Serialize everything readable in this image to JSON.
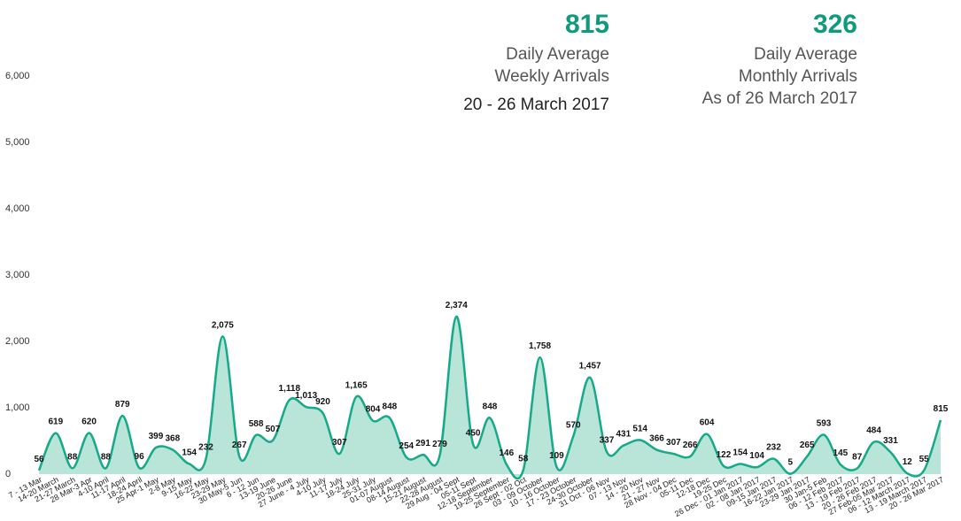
{
  "header": {
    "weekly": {
      "value": "815",
      "lines": [
        "Daily Average",
        "Weekly Arrivals"
      ],
      "period": "20 - 26 March 2017"
    },
    "monthly": {
      "value": "326",
      "lines": [
        "Daily Average",
        "Monthly Arrivals"
      ],
      "period": "As of 26 March 2017"
    }
  },
  "chart_data": {
    "type": "line",
    "color": "#16a98a",
    "area_color": "#7fcdb8",
    "categories": [
      "7 - 13 Mar",
      "14-20 March",
      "21-27 March",
      "28 Mar-3 Apr",
      "4-10 April",
      "11-17 April",
      "18-24 April",
      "25 Apr-1 May",
      "2-8 May",
      "9-15 May",
      "16-22 May",
      "23-29 May",
      "30 May-5 Jun",
      "6 - 12 Jun",
      "13-19 June",
      "20-26 June",
      "27 June - 4 July",
      "4-10 July",
      "11-17 July",
      "18-24 July",
      "25-31 July",
      "01-07 August",
      "08-14 August",
      "15-21 August",
      "22-28 August",
      "29 Aug - 04 Sept",
      "05-11 Sept",
      "12-18 September",
      "19-25 September",
      "26 Sept - 02 Oct",
      "03 - 09 October",
      "10 - 16 October",
      "17 - 23 October",
      "24-30 October",
      "31 Oct - 06 Nov",
      "07 - 13 Nov",
      "14 - 20 Nov",
      "21 - 27 Nov",
      "28 Nov - 04 Dec",
      "05-11 Dec",
      "12-18 Dec",
      "19-25 Dec",
      "26 Dec - 01 Jan 2017",
      "02 - 08 Jan 2017",
      "09-15 Jan 2017",
      "16-22 Jan 2017",
      "23-29 Jan 2017",
      "30 Jan-5 Feb",
      "06 - 12 Feb 2017",
      "13 - 19 Feb 2017",
      "20 - 26 Feb 2017",
      "27 Feb-05 Mar 2017",
      "06 - 12 March 2017",
      "13 - 19 March 2017",
      "20 - 26 Mar 2017"
    ],
    "values": [
      56,
      619,
      88,
      620,
      88,
      879,
      96,
      399,
      368,
      154,
      232,
      2075,
      267,
      588,
      507,
      1118,
      1013,
      920,
      307,
      1165,
      804,
      848,
      254,
      291,
      279,
      2374,
      450,
      848,
      146,
      58,
      1758,
      109,
      570,
      1457,
      337,
      431,
      514,
      366,
      307,
      266,
      604,
      122,
      154,
      104,
      232,
      5,
      265,
      593,
      145,
      87,
      484,
      331,
      12,
      55,
      815
    ],
    "value_labels": [
      "56",
      "619",
      "88",
      "620",
      "88",
      "879",
      "96",
      "399",
      "368",
      "154",
      "232",
      "2,075",
      "267",
      "588",
      "507",
      "1,118",
      "1,013",
      "920",
      "307",
      "1,165",
      "804",
      "848",
      "254",
      "291",
      "279",
      "2,374",
      "450",
      "848",
      "146",
      "58",
      "1,758",
      "109",
      "570",
      "1,457",
      "337",
      "431",
      "514",
      "366",
      "307",
      "266",
      "604",
      "122",
      "154",
      "104",
      "232",
      "5",
      "265",
      "593",
      "145",
      "87",
      "484",
      "331",
      "12",
      "55",
      "815"
    ],
    "ylim": [
      0,
      6000
    ],
    "yticks": [
      0,
      {
        "value": 1000,
        "label": "1,000"
      },
      {
        "value": 2000,
        "label": "2,000"
      },
      {
        "value": 3000,
        "label": "3,000"
      },
      {
        "value": 4000,
        "label": "4,000"
      },
      {
        "value": 5000,
        "label": "5,000"
      },
      {
        "value": 6000,
        "label": "6,000"
      }
    ],
    "grid": false
  }
}
